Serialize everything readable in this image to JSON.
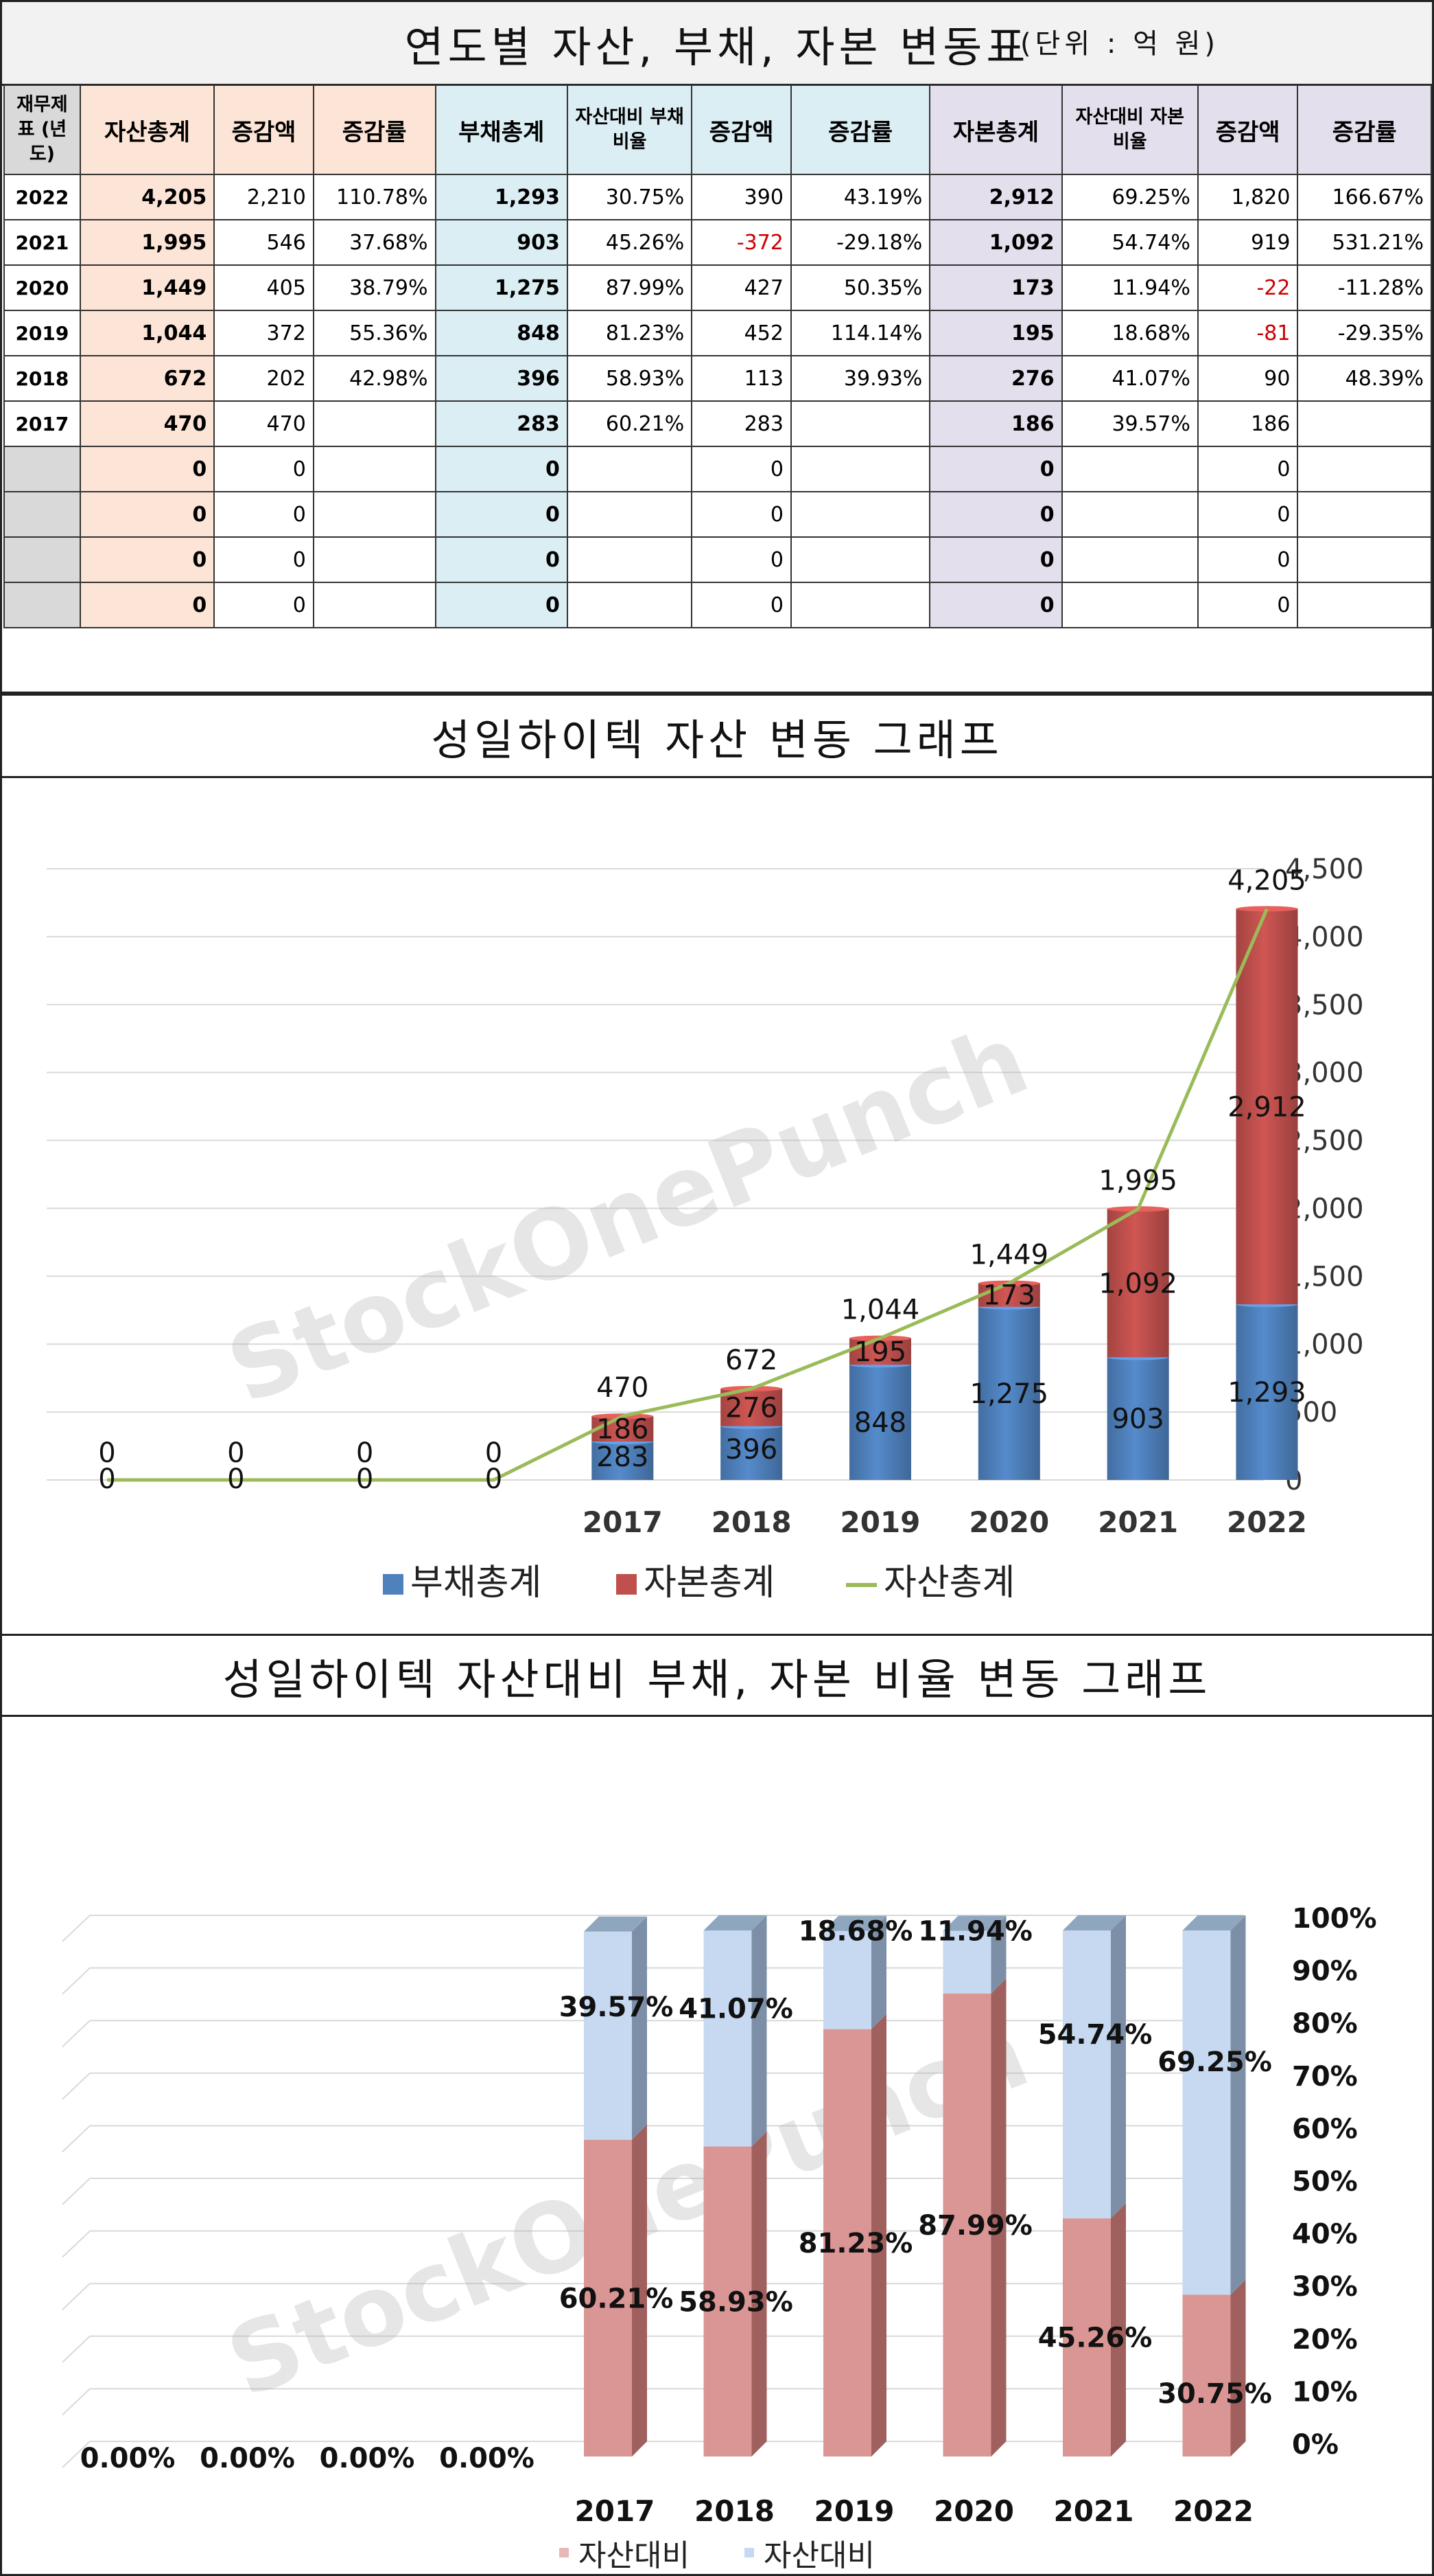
{
  "table": {
    "title": "연도별 자산, 부채, 자본 변동표",
    "unit": "(단위 : 억 원)",
    "headers": [
      "재무제표 (년도)",
      "자산총계",
      "증감액",
      "증감률",
      "부채총계",
      "자산대비 부채비율",
      "증감액",
      "증감률",
      "자본총계",
      "자산대비 자본비율",
      "증감액",
      "증감률"
    ],
    "rows": [
      [
        "2022",
        "4,205",
        "2,210",
        "110.78%",
        "1,293",
        "30.75%",
        "390",
        "43.19%",
        "2,912",
        "69.25%",
        "1,820",
        "166.67%"
      ],
      [
        "2021",
        "1,995",
        "546",
        "37.68%",
        "903",
        "45.26%",
        "-372",
        "-29.18%",
        "1,092",
        "54.74%",
        "919",
        "531.21%"
      ],
      [
        "2020",
        "1,449",
        "405",
        "38.79%",
        "1,275",
        "87.99%",
        "427",
        "50.35%",
        "173",
        "11.94%",
        "-22",
        "-11.28%"
      ],
      [
        "2019",
        "1,044",
        "372",
        "55.36%",
        "848",
        "81.23%",
        "452",
        "114.14%",
        "195",
        "18.68%",
        "-81",
        "-29.35%"
      ],
      [
        "2018",
        "672",
        "202",
        "42.98%",
        "396",
        "58.93%",
        "113",
        "39.93%",
        "276",
        "41.07%",
        "90",
        "48.39%"
      ],
      [
        "2017",
        "470",
        "470",
        "",
        "283",
        "60.21%",
        "283",
        "",
        "186",
        "39.57%",
        "186",
        ""
      ],
      [
        "",
        "0",
        "0",
        "",
        "0",
        "",
        "0",
        "",
        "0",
        "",
        "0",
        ""
      ],
      [
        "",
        "0",
        "0",
        "",
        "0",
        "",
        "0",
        "",
        "0",
        "",
        "0",
        ""
      ],
      [
        "",
        "0",
        "0",
        "",
        "0",
        "",
        "0",
        "",
        "0",
        "",
        "0",
        ""
      ],
      [
        "",
        "0",
        "0",
        "",
        "0",
        "",
        "0",
        "",
        "0",
        "",
        "0",
        ""
      ]
    ]
  },
  "chart_data": [
    {
      "type": "bar",
      "title": "성일하이텍 자산 변동 그래프",
      "stacked": true,
      "categories": [
        "",
        "",
        "",
        "",
        "2017",
        "2018",
        "2019",
        "2020",
        "2021",
        "2022"
      ],
      "series": [
        {
          "name": "부채총계",
          "type": "bar",
          "values": [
            0,
            0,
            0,
            0,
            283,
            396,
            848,
            1275,
            903,
            1293
          ],
          "labels": [
            "0",
            "0",
            "0",
            "0",
            "283",
            "396",
            "848",
            "1,275",
            "903",
            "1,293"
          ]
        },
        {
          "name": "자본총계",
          "type": "bar",
          "values": [
            0,
            0,
            0,
            0,
            186,
            276,
            195,
            173,
            1092,
            2912
          ],
          "labels": [
            "",
            "",
            "",
            "",
            "186",
            "276",
            "195",
            "173",
            "1,092",
            "2,912"
          ]
        },
        {
          "name": "자산총계",
          "type": "line",
          "values": [
            0,
            0,
            0,
            0,
            470,
            672,
            1044,
            1449,
            1995,
            4205
          ],
          "labels": [
            "0",
            "0",
            "0",
            "0",
            "470",
            "672",
            "1,044",
            "1,449",
            "1,995",
            "4,205"
          ]
        }
      ],
      "yticks": [
        "0",
        "500",
        "1,000",
        "1,500",
        "2,000",
        "2,500",
        "3,000",
        "3,500",
        "4,000",
        "4,500"
      ],
      "ylim": [
        0,
        4500
      ],
      "grid": true,
      "legend": "bottom",
      "watermark": "StockOnePunch",
      "colors": {
        "debt": "#4f81bd",
        "equity": "#c0504d",
        "assets": "#9bbb59"
      }
    },
    {
      "type": "bar",
      "title": "성일하이텍 자산대비 부채, 자본 비율 변동 그래프",
      "stacked": true,
      "percent": true,
      "categories": [
        "",
        "",
        "",
        "",
        "2017",
        "2018",
        "2019",
        "2020",
        "2021",
        "2022"
      ],
      "series": [
        {
          "name": "자산대비 부채비율",
          "values": [
            0,
            0,
            0,
            0,
            60.21,
            58.93,
            81.23,
            87.99,
            45.26,
            30.75
          ],
          "labels": [
            "0.00%",
            "0.00%",
            "0.00%",
            "0.00%",
            "60.21%",
            "58.93%",
            "81.23%",
            "87.99%",
            "45.26%",
            "30.75%"
          ]
        },
        {
          "name": "자산대비 자본비율",
          "values": [
            0,
            0,
            0,
            0,
            39.57,
            41.07,
            18.68,
            11.94,
            54.74,
            69.25
          ],
          "labels": [
            "",
            "",
            "",
            "",
            "39.57%",
            "41.07%",
            "18.68%",
            "11.94%",
            "54.74%",
            "69.25%"
          ]
        }
      ],
      "yticks": [
        "0%",
        "10%",
        "20%",
        "30%",
        "40%",
        "50%",
        "60%",
        "70%",
        "80%",
        "90%",
        "100%"
      ],
      "ylim": [
        0,
        100
      ],
      "grid": true,
      "legend": "bottom",
      "watermark": "StockOnePunch",
      "colors": {
        "debt": "#e6b9b8",
        "equity": "#c6d9f1"
      }
    }
  ]
}
